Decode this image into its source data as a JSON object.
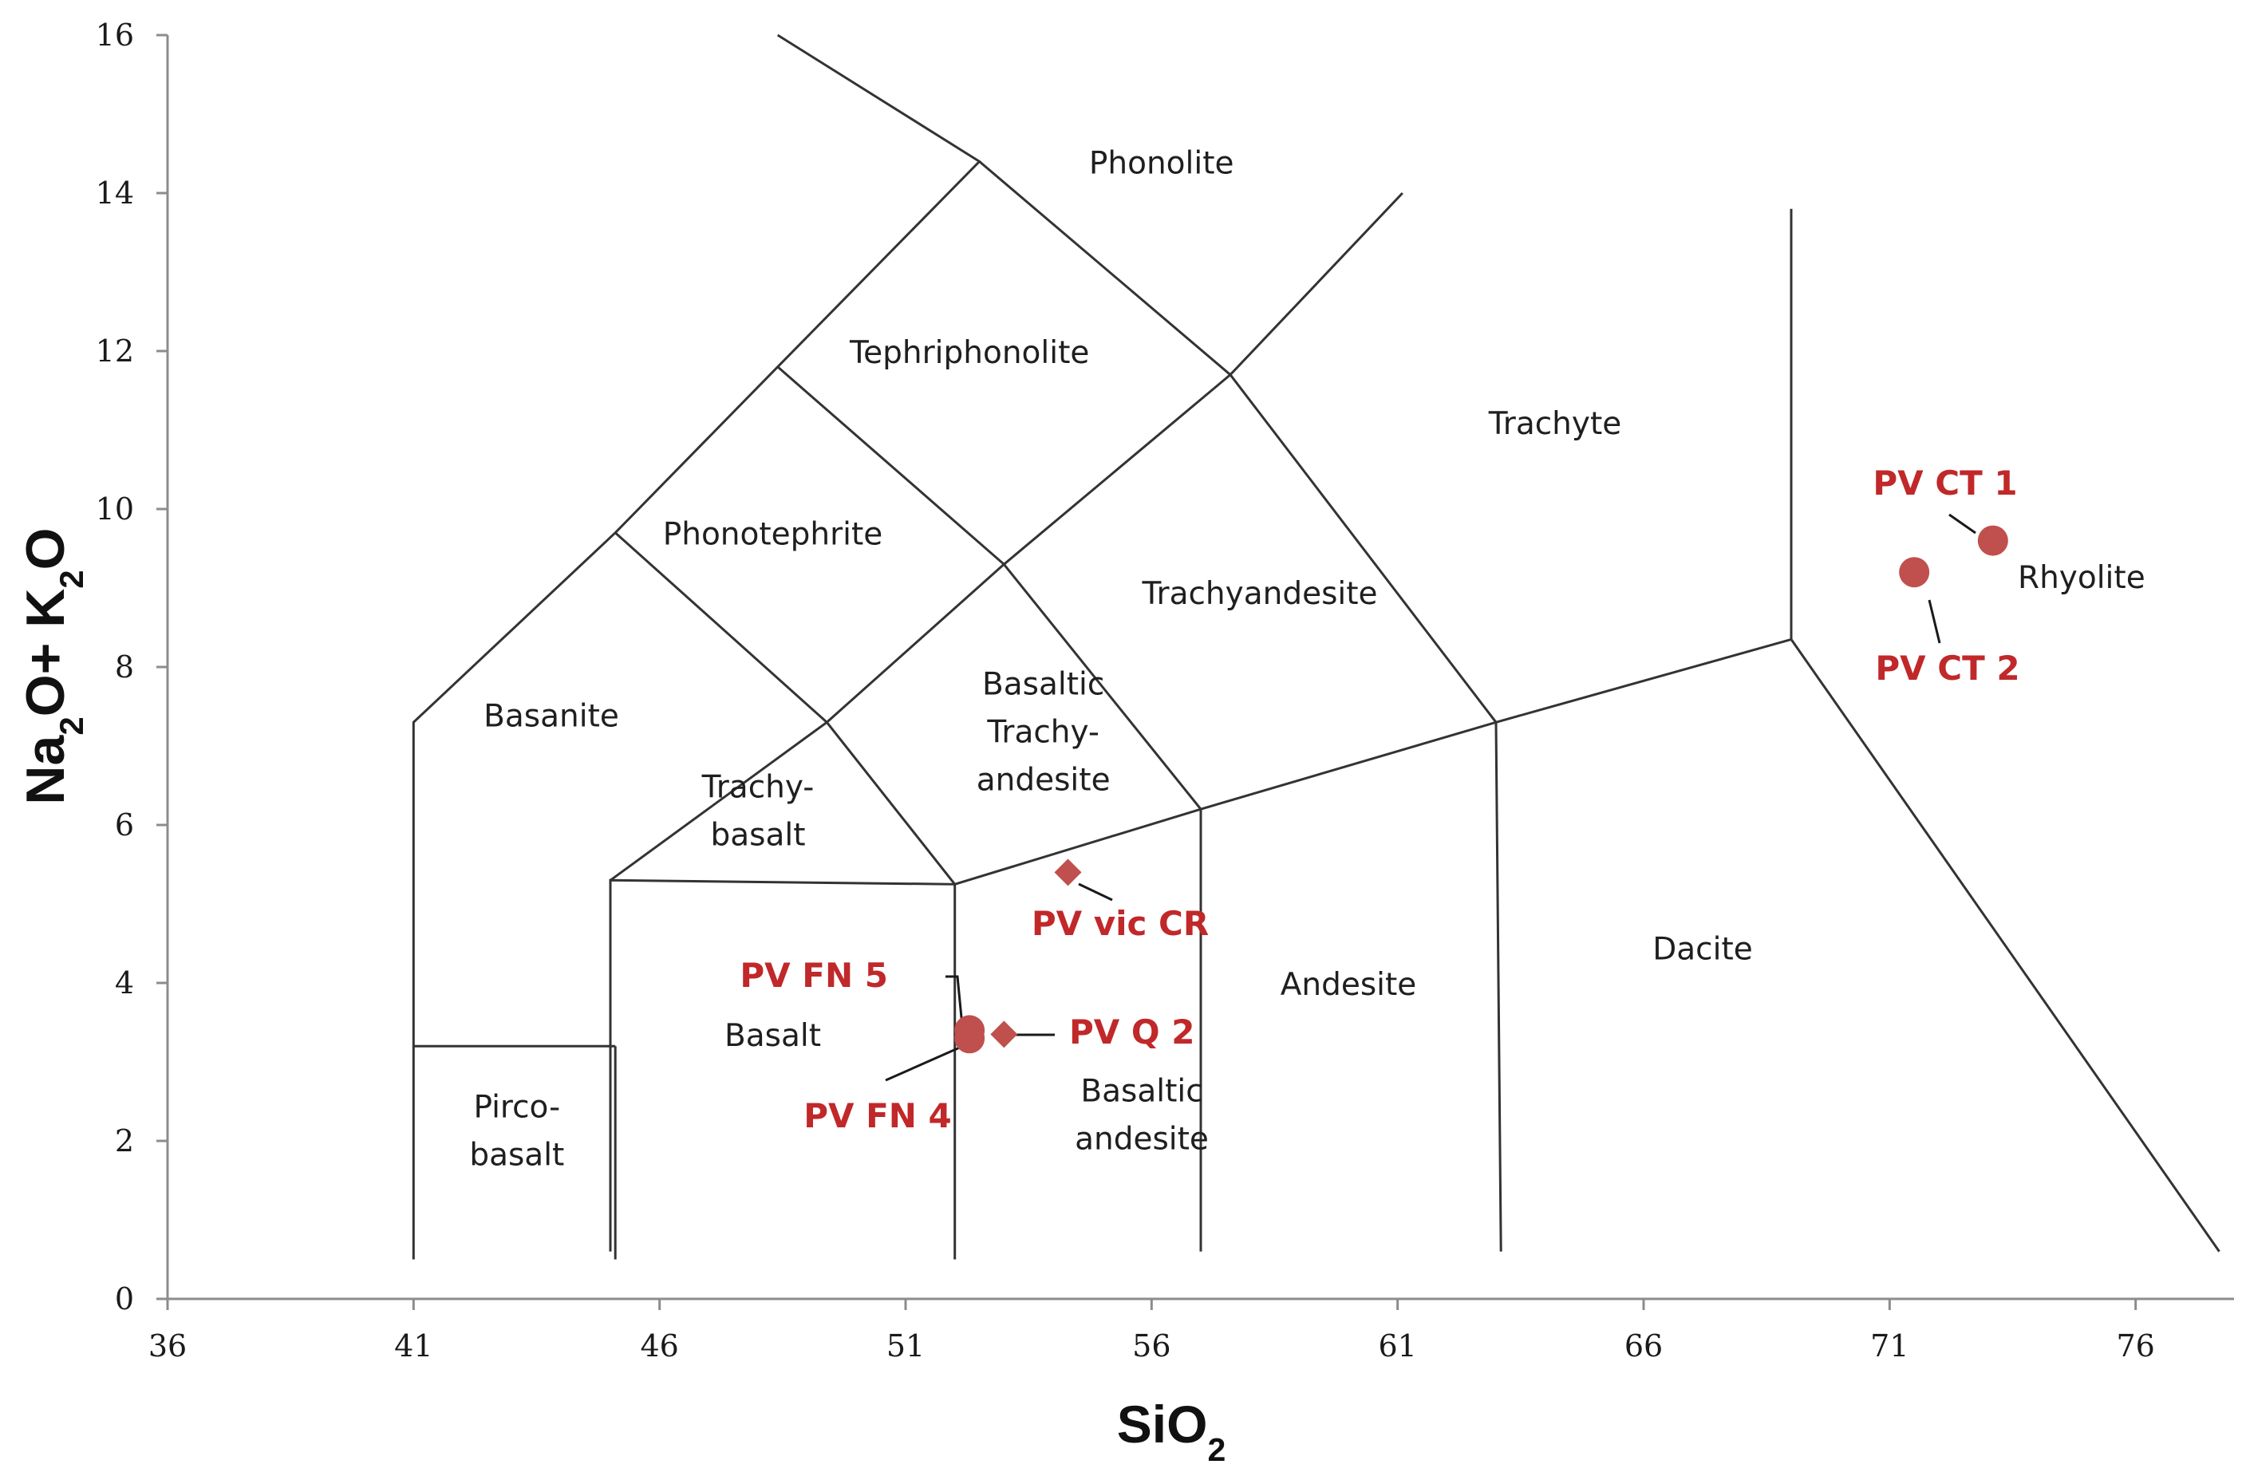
{
  "chart_data": {
    "type": "scatter",
    "title": "",
    "xlabel": "SiO2",
    "ylabel": "Na2O+ K2O",
    "xlim": [
      36,
      78
    ],
    "ylim": [
      0,
      16
    ],
    "x_ticks": [
      "36",
      "41",
      "46",
      "51",
      "56",
      "61",
      "66",
      "71",
      "76"
    ],
    "y_ticks": [
      "0",
      "2",
      "4",
      "6",
      "8",
      "10",
      "12",
      "14",
      "16"
    ],
    "grid": false,
    "legend": "none",
    "colors": {
      "samples": "#c0504d",
      "sample_labels": "#c0282a",
      "boundaries": "#333333"
    },
    "fields": [
      {
        "name": "Phonolite"
      },
      {
        "name": "Tephriphonolite"
      },
      {
        "name": "Phonotephrite"
      },
      {
        "name": "Trachyte"
      },
      {
        "name": "Trachyandesite"
      },
      {
        "name": "Basaltic\nTrachy-\nandesite"
      },
      {
        "name": "Basanite"
      },
      {
        "name": "Trachy-\nbasalt"
      },
      {
        "name": "Rhyolite"
      },
      {
        "name": "Dacite"
      },
      {
        "name": "Andesite"
      },
      {
        "name": "Basalt"
      },
      {
        "name": "Basaltic\nandesite"
      },
      {
        "name": "Pirco-\nbasalt"
      }
    ],
    "samples": [
      {
        "label": "PV CT 1",
        "x": 73.1,
        "y": 9.6,
        "marker": "circle"
      },
      {
        "label": "PV CT 2",
        "x": 71.5,
        "y": 9.2,
        "marker": "circle"
      },
      {
        "label": "PV vic CR",
        "x": 54.3,
        "y": 5.4,
        "marker": "diamond"
      },
      {
        "label": "PV FN 5",
        "x": 52.3,
        "y": 3.4,
        "marker": "circle"
      },
      {
        "label": "PV FN 4",
        "x": 52.3,
        "y": 3.3,
        "marker": "circle"
      },
      {
        "label": "PV Q 2",
        "x": 53.0,
        "y": 3.35,
        "marker": "diamond"
      }
    ]
  }
}
